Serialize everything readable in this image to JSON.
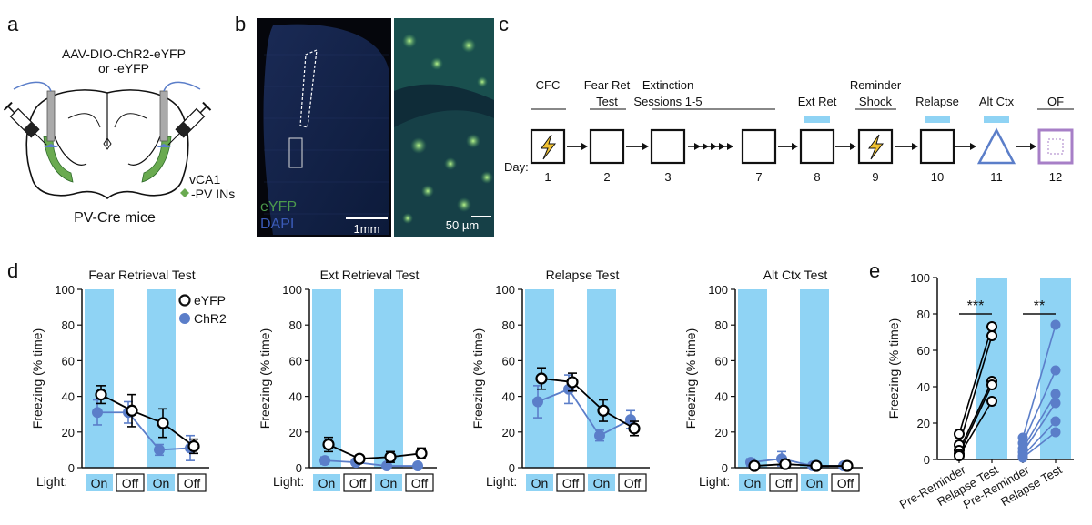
{
  "panel_labels": [
    "a",
    "b",
    "c",
    "d",
    "e"
  ],
  "a": {
    "virus_line1": "AAV-DIO-ChR2-eYFP",
    "virus_line2": "or -eYFP",
    "region": "vCA1",
    "cells": "-PV INs",
    "mice": "PV-Cre mice"
  },
  "b": {
    "eyfp": "eYFP",
    "dapi": "DAPI",
    "scale1": "1mm",
    "scale2": "50 µm"
  },
  "c": {
    "day_label": "Day:",
    "steps": [
      {
        "l1": "CFC",
        "l2": "",
        "day": "1",
        "icon": "shock-box",
        "light": false
      },
      {
        "l1": "Fear Ret",
        "l2": "Test",
        "day": "2",
        "icon": "box",
        "light": false
      },
      {
        "l1": "Extinction",
        "l2": "Sessions 1-5",
        "day": "3",
        "icon": "box",
        "light": false
      },
      {
        "l1": "",
        "l2": "",
        "day": "7",
        "icon": "box",
        "light": false
      },
      {
        "l1": "",
        "l2": "Ext Ret",
        "day": "8",
        "icon": "box",
        "light": true
      },
      {
        "l1": "Reminder",
        "l2": "Shock",
        "day": "9",
        "icon": "shock-box",
        "light": false
      },
      {
        "l1": "",
        "l2": "Relapse",
        "day": "10",
        "icon": "box",
        "light": true
      },
      {
        "l1": "",
        "l2": "Alt Ctx",
        "day": "11",
        "icon": "triangle",
        "light": true
      },
      {
        "l1": "",
        "l2": "OF",
        "day": "12",
        "icon": "open-field",
        "light": false
      }
    ]
  },
  "d": {
    "light_label": "Light:",
    "light_conditions": [
      "On",
      "Off",
      "On",
      "Off"
    ],
    "ylabel": "Freezing (% time)",
    "legend": [
      "eYFP",
      "ChR2"
    ]
  },
  "colors": {
    "light": "#8fd3f4",
    "chr2": "#5b7ec9",
    "eyfp": "#000000",
    "vca1": "#6aaa50",
    "of": "#a77fc7"
  },
  "chart_data": [
    {
      "type": "line",
      "title": "Fear Retrieval Test",
      "categories": [
        "On",
        "Off",
        "On",
        "Off"
      ],
      "ylabel": "Freezing (% time)",
      "ylim": [
        0,
        100
      ],
      "yticks": [
        "0",
        "20",
        "40",
        "60",
        "80",
        "100"
      ],
      "series": [
        {
          "name": "eYFP",
          "values": [
            41,
            32,
            25,
            12
          ],
          "errors": [
            5,
            9,
            8,
            4
          ]
        },
        {
          "name": "ChR2",
          "values": [
            31,
            31,
            10,
            11
          ],
          "errors": [
            7,
            6,
            3,
            7
          ]
        }
      ]
    },
    {
      "type": "line",
      "title": "Ext Retrieval Test",
      "categories": [
        "On",
        "Off",
        "On",
        "Off"
      ],
      "ylabel": "Freezing (% time)",
      "ylim": [
        0,
        100
      ],
      "yticks": [
        "0",
        "20",
        "40",
        "60",
        "80",
        "100"
      ],
      "series": [
        {
          "name": "eYFP",
          "values": [
            13,
            5,
            6,
            8
          ],
          "errors": [
            4,
            2,
            3,
            3
          ]
        },
        {
          "name": "ChR2",
          "values": [
            4,
            3,
            1,
            1
          ],
          "errors": [
            2,
            1,
            1,
            1
          ]
        }
      ]
    },
    {
      "type": "line",
      "title": "Relapse Test",
      "categories": [
        "On",
        "Off",
        "On",
        "Off"
      ],
      "ylabel": "Freezing (% time)",
      "ylim": [
        0,
        100
      ],
      "yticks": [
        "0",
        "20",
        "40",
        "60",
        "80",
        "100"
      ],
      "series": [
        {
          "name": "eYFP",
          "values": [
            50,
            48,
            32,
            22
          ],
          "errors": [
            6,
            5,
            6,
            4
          ]
        },
        {
          "name": "ChR2",
          "values": [
            37,
            44,
            18,
            27
          ],
          "errors": [
            9,
            8,
            3,
            5
          ]
        }
      ]
    },
    {
      "type": "line",
      "title": "Alt Ctx Test",
      "categories": [
        "On",
        "Off",
        "On",
        "Off"
      ],
      "ylabel": "Freezing (% time)",
      "ylim": [
        0,
        100
      ],
      "yticks": [
        "0",
        "20",
        "40",
        "60",
        "80",
        "100"
      ],
      "series": [
        {
          "name": "eYFP",
          "values": [
            1,
            2,
            1,
            1
          ],
          "errors": [
            1,
            1,
            1,
            1
          ]
        },
        {
          "name": "ChR2",
          "values": [
            3,
            5,
            1,
            1
          ],
          "errors": [
            2,
            4,
            1,
            1
          ]
        }
      ]
    },
    {
      "type": "scatter",
      "title": "",
      "categories": [
        "Pre-Reminder",
        "Relapse Test",
        "Pre-Reminder",
        "Relapse Test"
      ],
      "ylabel": "Freezing (% time)",
      "ylim": [
        0,
        100
      ],
      "yticks": [
        "0",
        "20",
        "40",
        "60",
        "80",
        "100"
      ],
      "significance": [
        "***",
        "**"
      ],
      "series": [
        {
          "name": "eYFP",
          "pairs": [
            [
              14,
              73
            ],
            [
              8,
              68
            ],
            [
              5,
              43
            ],
            [
              3,
              41
            ],
            [
              2,
              32
            ]
          ]
        },
        {
          "name": "ChR2",
          "pairs": [
            [
              12,
              74
            ],
            [
              9,
              49
            ],
            [
              6,
              36
            ],
            [
              4,
              31
            ],
            [
              2,
              21
            ],
            [
              1,
              15
            ]
          ]
        }
      ]
    }
  ]
}
